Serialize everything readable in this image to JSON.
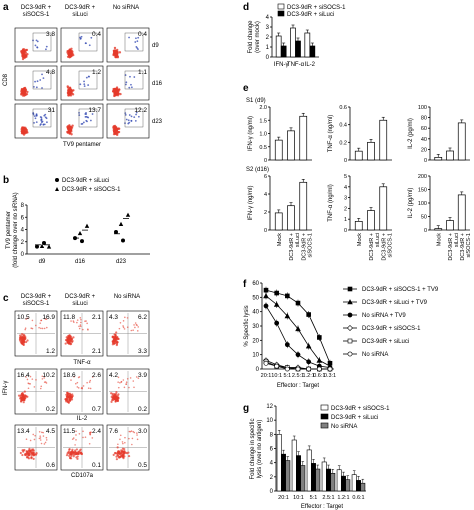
{
  "chart_data": [
    {
      "id": "a",
      "type": "flow-cytometry-grid",
      "panel_label": "a",
      "columns": [
        "DC3-9dR + siSOCS-1",
        "DC3-9dR + siLuci",
        "No siRNA"
      ],
      "rows": [
        "d9",
        "d16",
        "d23"
      ],
      "quadrant_values": [
        [
          "3.8",
          "0.4",
          "0.4"
        ],
        [
          "4.8",
          "1.2",
          "1.1"
        ],
        [
          "31",
          "13.7",
          "12.2"
        ]
      ],
      "ylabel": "CD8",
      "xlabel": "TV9 pentamer"
    },
    {
      "id": "b",
      "type": "scatter",
      "panel_label": "b",
      "legend": [
        "DC3-9dR + siLuci",
        "DC3-9dR + siSOCS-1"
      ],
      "ylabel": "TV9 pentamer\n(fold change over no siRNA)",
      "categories": [
        "d9",
        "d16",
        "d23"
      ],
      "ylim": [
        0,
        8
      ],
      "yticks": [
        0,
        2,
        4,
        6,
        8
      ],
      "series": [
        {
          "name": "DC3-9dR + siLuci",
          "marker": "circle",
          "values": [
            [
              1.2,
              1.8
            ],
            [
              2.6,
              2.1
            ],
            [
              3.6,
              2.2
            ]
          ]
        },
        {
          "name": "DC3-9dR + siSOCS-1",
          "marker": "triangle",
          "values": [
            [
              1.3,
              1.2
            ],
            [
              3.4,
              4.6
            ],
            [
              4.9,
              6.4
            ]
          ]
        }
      ],
      "means": [
        [
          1.5,
          1.5
        ],
        [
          2.6,
          3.9
        ],
        [
          3.3,
          5.8
        ]
      ]
    },
    {
      "id": "c",
      "type": "flow-cytometry-grid",
      "panel_label": "c",
      "columns": [
        "DC3-9dR + siSOCS-1",
        "DC3-9dR + siLuci",
        "No siRNA"
      ],
      "row_xlabels": [
        "TNF-α",
        "IL-2",
        "CD107a"
      ],
      "ylabel": "IFN-γ",
      "quadrants": [
        [
          [
            "10.5",
            "16.9"
          ],
          [
            "11.8",
            "2.1"
          ],
          [
            "4.3",
            "6.2"
          ]
        ],
        [
          [
            "16.4",
            "10.2"
          ],
          [
            "18.6",
            "2.6"
          ],
          [
            "4.2",
            "3.9"
          ]
        ],
        [
          [
            "13.4",
            "4.5"
          ],
          [
            "11.5",
            "2.4"
          ],
          [
            "7.6",
            "3.0"
          ]
        ]
      ],
      "lower_right": [
        [
          "1.2",
          "2.1",
          "3.3"
        ],
        [
          "0.2",
          "0.7",
          "0.2"
        ],
        [
          "0.6",
          "0.1",
          "0.5"
        ]
      ]
    },
    {
      "id": "d",
      "type": "bar",
      "panel_label": "d",
      "categories": [
        "IFN-γ",
        "TNF-α",
        "IL-2"
      ],
      "series": [
        {
          "name": "DC3-9dR + siSOCS-1",
          "color": "#ffffff",
          "values": [
            2.1,
            2.9,
            2.4
          ]
        },
        {
          "name": "DC3-9dR + siLuci",
          "color": "#000000",
          "values": [
            1.1,
            1.6,
            1.1
          ]
        }
      ],
      "ylabel": "Fold change\n(over mock)",
      "ylim": [
        0,
        4
      ],
      "yticks": [
        0,
        1,
        2,
        3,
        4
      ]
    },
    {
      "id": "e",
      "type": "bar",
      "panel_label": "e",
      "row_labels": [
        "S1 (d9)",
        "S2 (d16)"
      ],
      "categories": [
        "Mock",
        "DC3-9dR + siLuci",
        "DC3-9dR + siSOCS-1"
      ],
      "panels": [
        {
          "row": 0,
          "col": 0,
          "ylabel": "IFN-γ (ng/ml)",
          "ylim": [
            0,
            2.0
          ],
          "ticks": [
            "0",
            "0.5",
            "1.0",
            "1.5",
            "2.0"
          ],
          "values": [
            0.75,
            1.1,
            1.65
          ]
        },
        {
          "row": 0,
          "col": 1,
          "ylabel": "TNF-α (ng/ml)",
          "ylim": [
            0,
            0.6
          ],
          "ticks": [
            "0",
            "0.2",
            "0.4",
            "0.6"
          ],
          "values": [
            0.1,
            0.2,
            0.45
          ]
        },
        {
          "row": 0,
          "col": 2,
          "ylabel": "IL-2 (pg/ml)",
          "ylim": [
            0,
            100
          ],
          "ticks": [
            "0",
            "20",
            "40",
            "60",
            "80",
            "100"
          ],
          "values": [
            5,
            17,
            70
          ]
        },
        {
          "row": 1,
          "col": 0,
          "ylabel": "IFN-γ (ng/ml)",
          "ylim": [
            0,
            6
          ],
          "ticks": [
            "0",
            "2",
            "4",
            "6"
          ],
          "values": [
            1.9,
            2.7,
            5.3
          ]
        },
        {
          "row": 1,
          "col": 1,
          "ylabel": "TNF-α (ng/ml)",
          "ylim": [
            0,
            5
          ],
          "ticks": [
            "0",
            "1",
            "2",
            "3",
            "4",
            "5"
          ],
          "values": [
            0.8,
            1.8,
            4.0
          ]
        },
        {
          "row": 1,
          "col": 2,
          "ylabel": "IL-2 (pg/ml)",
          "ylim": [
            0,
            200
          ],
          "ticks": [
            "0",
            "50",
            "100",
            "150",
            "200"
          ],
          "values": [
            5,
            35,
            130
          ]
        }
      ]
    },
    {
      "id": "f",
      "type": "line",
      "panel_label": "f",
      "x": [
        "20:1",
        "10:1",
        "5:1",
        "2.5:1",
        "1.2:1",
        "0.6:1",
        "0.3:1"
      ],
      "xlabel": "Effector : Target",
      "ylabel": "% Specific lysis",
      "ylim": [
        0,
        60
      ],
      "yticks": [
        0,
        10,
        20,
        30,
        40,
        50,
        60
      ],
      "series": [
        {
          "name": "DC3-9dR + siSOCS-1 + TV9",
          "marker": "filled-square",
          "values": [
            55,
            53,
            51,
            46,
            38,
            22,
            4
          ]
        },
        {
          "name": "DC3-9dR + siLuci + TV9",
          "marker": "filled-triangle",
          "values": [
            51,
            45,
            37,
            28,
            16,
            6,
            2
          ]
        },
        {
          "name": "No siRNA + TV9",
          "marker": "filled-circle",
          "values": [
            44,
            32,
            17,
            10,
            5,
            2,
            1
          ]
        },
        {
          "name": "DC3-9dR + siSOCS-1",
          "marker": "open-diamond",
          "values": [
            6,
            3,
            1,
            1,
            0,
            0,
            0
          ]
        },
        {
          "name": "DC3-9dR + siLuci",
          "marker": "open-square",
          "values": [
            5,
            2,
            1,
            0,
            0,
            0,
            0
          ]
        },
        {
          "name": "No siRNA",
          "marker": "open-circle",
          "values": [
            4,
            2,
            0,
            0,
            0,
            0,
            0
          ]
        }
      ]
    },
    {
      "id": "g",
      "type": "bar",
      "panel_label": "g",
      "categories": [
        "20:1",
        "10:1",
        "5:1",
        "2.5:1",
        "1.2:1",
        "0.6:1"
      ],
      "series": [
        {
          "name": "DC3-9dR + siSOCS-1",
          "color": "#ffffff",
          "values": [
            8.0,
            7.2,
            5.8,
            4.1,
            3.0,
            2.3
          ]
        },
        {
          "name": "DC3-9dR + siLuci",
          "color": "#000000",
          "values": [
            5.2,
            5.0,
            3.9,
            3.1,
            2.1,
            1.5
          ]
        },
        {
          "name": "No siRNA",
          "color": "#808080",
          "values": [
            4.3,
            3.6,
            3.1,
            2.5,
            1.6,
            1.1
          ]
        }
      ],
      "xlabel": "Effector : Target",
      "ylabel": "Fold change in specific\nlysis (over no antigen)",
      "ylim": [
        0,
        12
      ],
      "yticks": [
        0,
        2,
        4,
        6,
        8,
        10,
        12
      ]
    }
  ]
}
